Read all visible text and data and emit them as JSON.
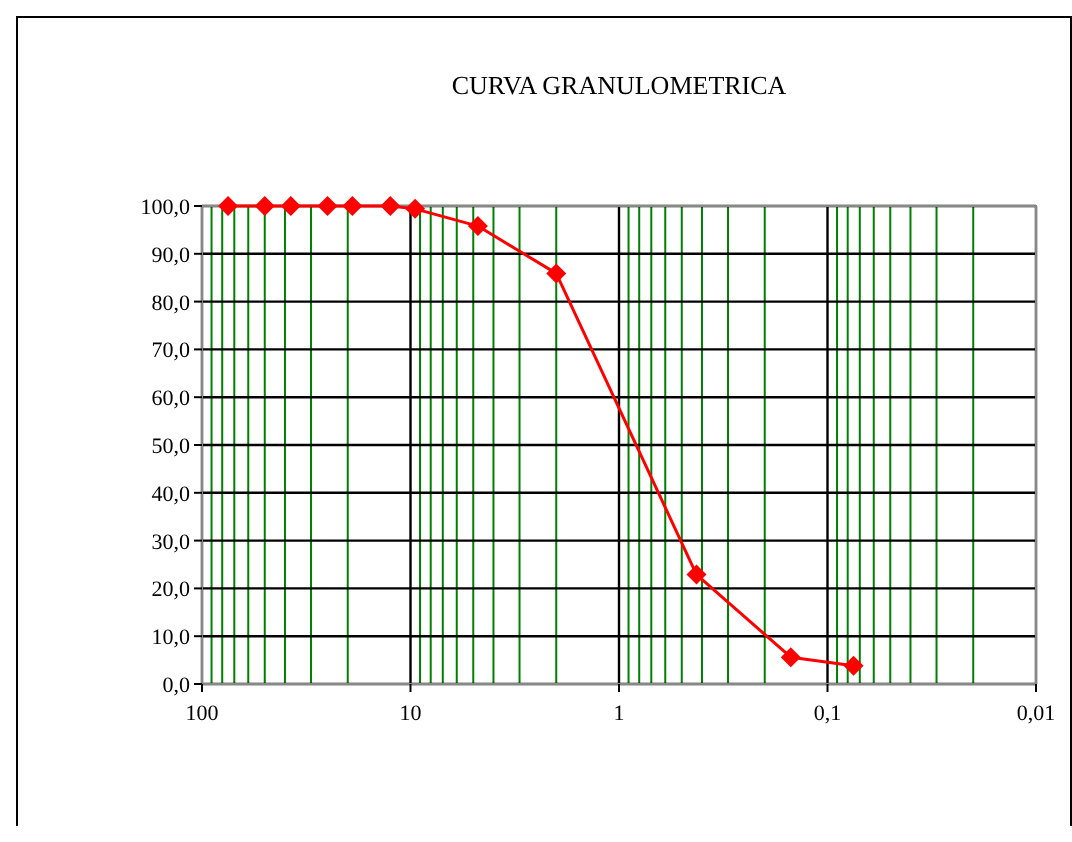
{
  "chart_data": {
    "type": "line",
    "title": "CURVA GRANULOMETRICA",
    "x": [
      75,
      50,
      37.5,
      25,
      19,
      12.5,
      9.5,
      4.75,
      2,
      0.425,
      0.15,
      0.075
    ],
    "series": [
      {
        "color": "#ff0000",
        "values": [
          100,
          100,
          100,
          100,
          100,
          100,
          99.4,
          95.8,
          85.9,
          22.9,
          5.6,
          3.8
        ]
      }
    ],
    "log": "x",
    "xlim": [
      100,
      0.01
    ],
    "xticks": [
      100,
      {
        "value": 90,
        "label": null
      },
      {
        "value": 80,
        "label": null
      },
      {
        "value": 70,
        "label": null
      },
      {
        "value": 60,
        "label": null
      },
      {
        "value": 50,
        "label": null
      },
      {
        "value": 40,
        "label": null
      },
      {
        "value": 30,
        "label": null
      },
      {
        "value": 20,
        "label": null
      },
      10,
      {
        "value": 9,
        "label": null
      },
      {
        "value": 8,
        "label": null
      },
      {
        "value": 7,
        "label": null
      },
      {
        "value": 6,
        "label": null
      },
      {
        "value": 5,
        "label": null
      },
      {
        "value": 4,
        "label": null
      },
      {
        "value": 3,
        "label": null
      },
      {
        "value": 2,
        "label": null
      },
      1,
      {
        "value": 0.9,
        "label": null
      },
      {
        "value": 0.8,
        "label": null
      },
      {
        "value": 0.7,
        "label": null
      },
      {
        "value": 0.6,
        "label": null
      },
      {
        "value": 0.5,
        "label": null
      },
      {
        "value": 0.4,
        "label": null
      },
      {
        "value": 0.3,
        "label": null
      },
      {
        "value": 0.2,
        "label": null
      },
      {
        "value": 0.1,
        "label": "0,1"
      },
      {
        "value": 0.09,
        "label": null
      },
      {
        "value": 0.08,
        "label": null
      },
      {
        "value": 0.07,
        "label": null
      },
      {
        "value": 0.06,
        "label": null
      },
      {
        "value": 0.05,
        "label": null
      },
      {
        "value": 0.04,
        "label": null
      },
      {
        "value": 0.03,
        "label": null
      },
      {
        "value": 0.02,
        "label": null
      },
      {
        "value": 0.01,
        "label": "0,01"
      }
    ],
    "ylim": [
      0,
      100
    ],
    "yticks": [
      {
        "value": 0,
        "label": "0,0"
      },
      {
        "value": 10,
        "label": "10,0"
      },
      {
        "value": 20,
        "label": "20,0"
      },
      {
        "value": 30,
        "label": "30,0"
      },
      {
        "value": 40,
        "label": "40,0"
      },
      {
        "value": 50,
        "label": "50,0"
      },
      {
        "value": 60,
        "label": "60,0"
      },
      {
        "value": 70,
        "label": "70,0"
      },
      {
        "value": 80,
        "label": "80,0"
      },
      {
        "value": 90,
        "label": "90,0"
      },
      {
        "value": 100,
        "label": "100,0"
      }
    ],
    "grid": true,
    "marker": "diamond",
    "line_style": "solid"
  }
}
